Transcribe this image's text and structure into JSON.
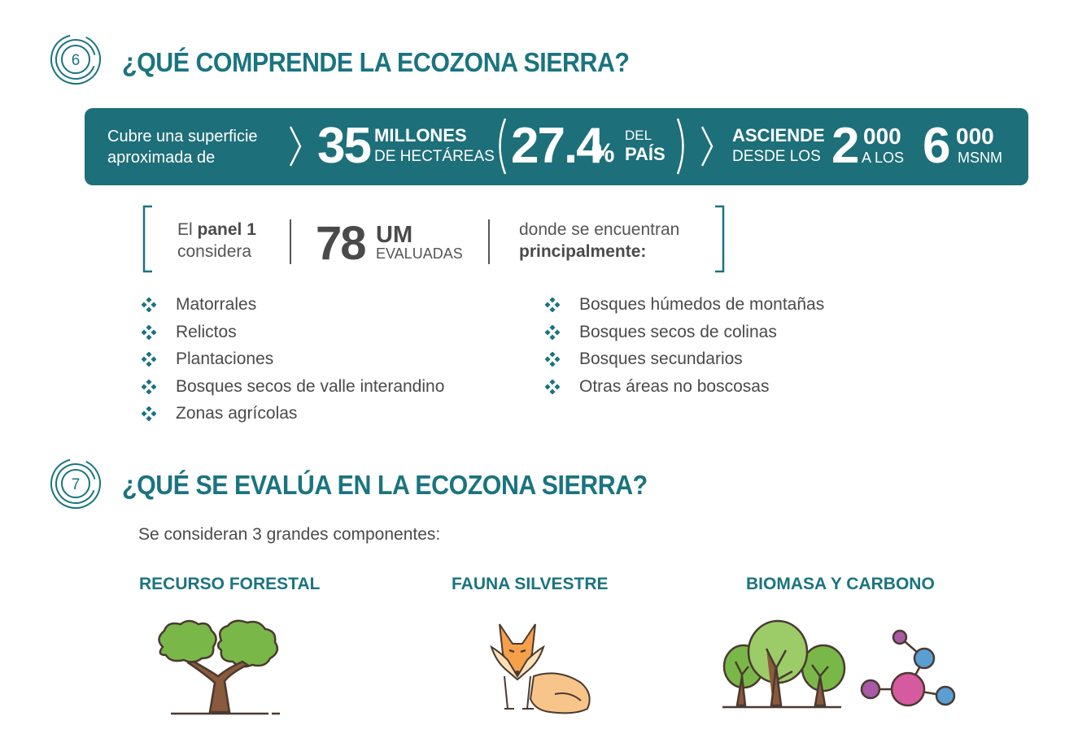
{
  "section6": {
    "number": "6",
    "title": "¿QUÉ COMPRENDE LA ECOZONA SIERRA?"
  },
  "banner": {
    "intro_line1": "Cubre una superficie",
    "intro_line2": "aproximada de",
    "area_value": "35",
    "area_unit_line1": "MILLONES",
    "area_unit_line2": "DE HECTÁREAS",
    "percent_value": "27.4",
    "percent_sign": "%",
    "percent_label_line1": "DEL",
    "percent_label_line2": "PAÍS",
    "altitude_label_line1": "ASCIENDE",
    "altitude_label_line2": "DESDE LOS",
    "altitude_from_big": "2",
    "altitude_from_small": "000",
    "altitude_connector": "A LOS",
    "altitude_to_big": "6",
    "altitude_to_small": "000",
    "altitude_unit": "MSNM"
  },
  "panel": {
    "line1_prefix": "El ",
    "line1_bold": "panel 1",
    "line2": "considera",
    "um_value": "78",
    "um_label": "UM",
    "um_sub": "EVALUADAS",
    "found_line1": "donde se encuentran",
    "found_line2": "principalmente:"
  },
  "list_left": [
    "Matorrales",
    "Relictos",
    "Plantaciones",
    "Bosques secos de valle interandino",
    "Zonas agrícolas"
  ],
  "list_right": [
    "Bosques húmedos de montañas",
    "Bosques secos de colinas",
    "Bosques secundarios",
    "Otras áreas no boscosas"
  ],
  "section7": {
    "number": "7",
    "title": "¿QUÉ SE EVALÚA EN LA ECOZONA SIERRA?"
  },
  "components_intro": "Se consideran 3 grandes componentes:",
  "components": [
    {
      "label": "RECURSO FORESTAL",
      "icon": "tree-icon"
    },
    {
      "label": "FAUNA SILVESTRE",
      "icon": "fox-icon"
    },
    {
      "label": "BIOMASA Y CARBONO",
      "icon": "forest-molecule-icon"
    }
  ],
  "colors": {
    "teal": "#1a7480",
    "banner": "#1d6f79",
    "text": "#4a4a4a",
    "green": "#79b848",
    "brown": "#8a5a3c",
    "orange": "#f5a04a",
    "pink": "#d65aa0",
    "blue": "#5a9fd4",
    "purple": "#a85aa6"
  }
}
